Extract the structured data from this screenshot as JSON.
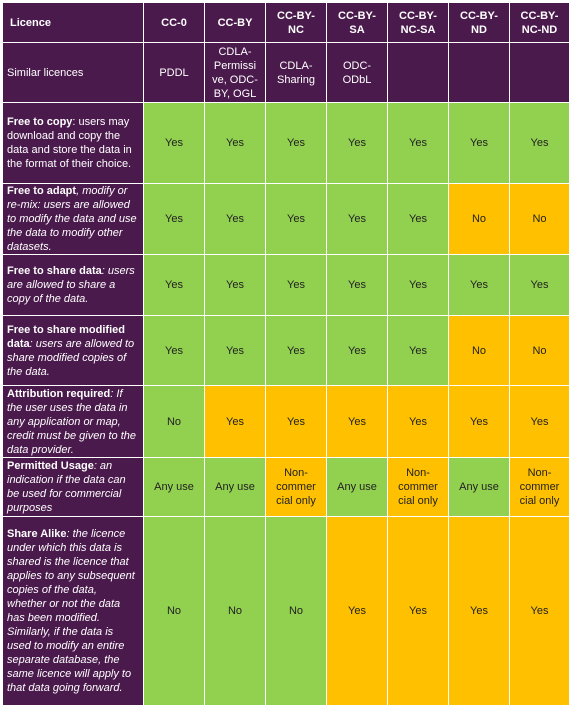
{
  "header": {
    "label": "Licence",
    "columns": [
      "CC-0",
      "CC-BY",
      "CC-BY-\nNC",
      "CC-BY-\nSA",
      "CC-BY-\nNC-SA",
      "CC-BY-\nND",
      "CC-BY-\nNC-ND"
    ]
  },
  "similar": {
    "label": "Similar licences",
    "values": [
      "PDDL",
      "CDLA-\nPermissi\nve, ODC-\nBY, OGL",
      "CDLA-\nSharing",
      "ODC-\nODbL",
      "",
      "",
      ""
    ]
  },
  "rows": [
    {
      "bold": "Free to copy",
      "rest": ": users may download and copy the data and store the data in the format of their choice.",
      "rest_italic": false,
      "cells": [
        {
          "text": "Yes",
          "status": "green"
        },
        {
          "text": "Yes",
          "status": "green"
        },
        {
          "text": "Yes",
          "status": "green"
        },
        {
          "text": "Yes",
          "status": "green"
        },
        {
          "text": "Yes",
          "status": "green"
        },
        {
          "text": "Yes",
          "status": "green"
        },
        {
          "text": "Yes",
          "status": "green"
        }
      ]
    },
    {
      "bold": "Free to adapt",
      "rest": ", modify or re-mix: users are allowed to modify the data and use the data to modify other datasets.",
      "rest_italic": true,
      "cells": [
        {
          "text": "Yes",
          "status": "green"
        },
        {
          "text": "Yes",
          "status": "green"
        },
        {
          "text": "Yes",
          "status": "green"
        },
        {
          "text": "Yes",
          "status": "green"
        },
        {
          "text": "Yes",
          "status": "green"
        },
        {
          "text": "No",
          "status": "orange"
        },
        {
          "text": "No",
          "status": "orange"
        }
      ]
    },
    {
      "bold": "Free to share data",
      "rest": ": users are allowed to share a copy of the data.",
      "rest_italic": true,
      "cells": [
        {
          "text": "Yes",
          "status": "green"
        },
        {
          "text": "Yes",
          "status": "green"
        },
        {
          "text": "Yes",
          "status": "green"
        },
        {
          "text": "Yes",
          "status": "green"
        },
        {
          "text": "Yes",
          "status": "green"
        },
        {
          "text": "Yes",
          "status": "green"
        },
        {
          "text": "Yes",
          "status": "green"
        }
      ]
    },
    {
      "bold": "Free to share modified data",
      "rest": ": users are allowed to share modified copies of the data.",
      "rest_italic": true,
      "cells": [
        {
          "text": "Yes",
          "status": "green"
        },
        {
          "text": "Yes",
          "status": "green"
        },
        {
          "text": "Yes",
          "status": "green"
        },
        {
          "text": "Yes",
          "status": "green"
        },
        {
          "text": "Yes",
          "status": "green"
        },
        {
          "text": "No",
          "status": "orange"
        },
        {
          "text": "No",
          "status": "orange"
        }
      ]
    },
    {
      "bold": "Attribution required",
      "rest": ": If the user uses the data in any application or map, credit must be given to the data provider.",
      "rest_italic": true,
      "cells": [
        {
          "text": "No",
          "status": "green"
        },
        {
          "text": "Yes",
          "status": "orange"
        },
        {
          "text": "Yes",
          "status": "orange"
        },
        {
          "text": "Yes",
          "status": "orange"
        },
        {
          "text": "Yes",
          "status": "orange"
        },
        {
          "text": "Yes",
          "status": "orange"
        },
        {
          "text": "Yes",
          "status": "orange"
        }
      ]
    },
    {
      "bold": "Permitted Usage",
      "rest": ": an indication if the data can be used for commercial purposes",
      "rest_italic": true,
      "cells": [
        {
          "text": "Any use",
          "status": "green"
        },
        {
          "text": "Any use",
          "status": "green"
        },
        {
          "text": "Non-\ncommer\ncial only",
          "status": "orange"
        },
        {
          "text": "Any use",
          "status": "green"
        },
        {
          "text": "Non-\ncommer\ncial only",
          "status": "orange"
        },
        {
          "text": "Any use",
          "status": "green"
        },
        {
          "text": "Non-\ncommer\ncial only",
          "status": "orange"
        }
      ]
    },
    {
      "bold": "Share Alike",
      "rest": ": the licence under which this data is shared is the licence that applies to any subsequent copies of the data, whether or not the data has been modified. Similarly, if the data is used to modify an entire separate database, the same licence will apply to that data going forward.",
      "rest_italic": true,
      "cells": [
        {
          "text": "No",
          "status": "green"
        },
        {
          "text": "No",
          "status": "green"
        },
        {
          "text": "No",
          "status": "green"
        },
        {
          "text": "Yes",
          "status": "orange"
        },
        {
          "text": "Yes",
          "status": "orange"
        },
        {
          "text": "Yes",
          "status": "orange"
        },
        {
          "text": "Yes",
          "status": "orange"
        }
      ]
    }
  ],
  "colors": {
    "header_bg": "#4a1a4c",
    "green": "#92d050",
    "orange": "#ffc000",
    "text_light": "#ffffff",
    "text_dark": "#222222"
  }
}
